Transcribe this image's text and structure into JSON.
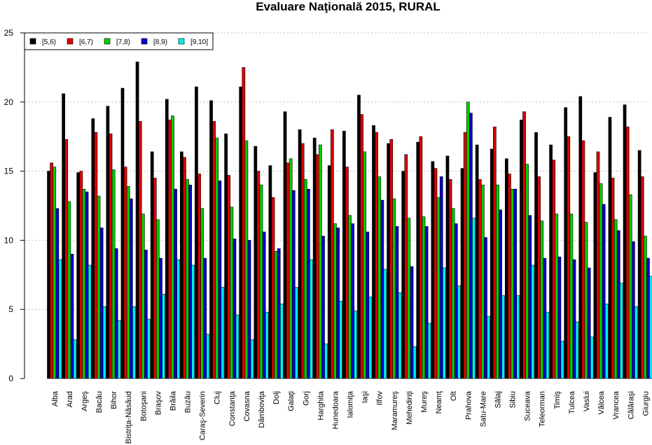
{
  "chart_data": {
    "type": "bar",
    "title": "Evaluare Naţională 2015, RURAL",
    "xlabel": "",
    "ylabel": "",
    "ylim": [
      0,
      25
    ],
    "yticks": [
      0,
      5,
      10,
      15,
      20,
      25
    ],
    "grid": true,
    "legend_position": "top-left",
    "categories": [
      "Alba",
      "Arad",
      "Argeş",
      "Bacău",
      "Bihor",
      "Bistriţa-Năsăud",
      "Botoşani",
      "Braşov",
      "Brăila",
      "Buzău",
      "Caraş-Severin",
      "Cluj",
      "Constanţa",
      "Covasna",
      "Dâmboviţa",
      "Dolj",
      "Galaţi",
      "Gorj",
      "Harghita",
      "Hunedoara",
      "Ialomiţa",
      "Iaşi",
      "Ilfov",
      "Maramureş",
      "Mehedinţi",
      "Mureş",
      "Neamţ",
      "Olt",
      "Prahova",
      "Satu-Mare",
      "Sălaj",
      "Sibiu",
      "Suceava",
      "Teleorman",
      "Timiş",
      "Tulcea",
      "Vaslui",
      "Vâlcea",
      "Vrancea",
      "Călăraşi",
      "Giurgiu"
    ],
    "series": [
      {
        "name": "[5,6)",
        "color": "#000000",
        "values": [
          15.0,
          20.6,
          14.9,
          18.8,
          19.7,
          21.0,
          22.9,
          16.4,
          20.2,
          16.4,
          21.1,
          20.1,
          17.7,
          21.1,
          16.8,
          15.4,
          19.3,
          18.0,
          17.4,
          15.4,
          17.9,
          20.5,
          18.3,
          17.0,
          15.0,
          17.1,
          15.7,
          16.1,
          15.2,
          16.9,
          16.6,
          15.9,
          18.7,
          17.8,
          16.9,
          19.6,
          20.4,
          14.9,
          18.9,
          19.8,
          16.5
        ]
      },
      {
        "name": "[6,7)",
        "color": "#df0000",
        "values": [
          15.6,
          17.3,
          15.0,
          17.8,
          17.7,
          15.3,
          18.6,
          14.5,
          18.7,
          16.0,
          14.8,
          18.6,
          14.7,
          22.5,
          15.0,
          13.1,
          15.6,
          17.0,
          16.2,
          18.0,
          15.3,
          19.1,
          17.8,
          17.3,
          16.2,
          17.5,
          15.2,
          14.4,
          17.8,
          14.4,
          18.2,
          14.8,
          19.3,
          14.6,
          15.8,
          17.5,
          17.2,
          16.4,
          14.5,
          18.2,
          14.6
        ]
      },
      {
        "name": "[7,8)",
        "color": "#00cd00",
        "values": [
          15.3,
          12.8,
          13.7,
          13.2,
          15.1,
          13.9,
          11.9,
          11.5,
          19.0,
          14.4,
          12.3,
          17.4,
          12.4,
          17.2,
          14.0,
          9.2,
          15.9,
          14.4,
          16.9,
          11.2,
          11.8,
          16.4,
          14.6,
          13.0,
          11.6,
          11.7,
          13.1,
          12.3,
          20.0,
          14.0,
          14.0,
          13.7,
          15.5,
          11.4,
          11.9,
          11.9,
          11.3,
          14.1,
          11.5,
          13.3,
          10.3
        ]
      },
      {
        "name": "[8,9)",
        "color": "#0000cd",
        "values": [
          12.3,
          9.0,
          13.5,
          10.9,
          9.4,
          13.0,
          9.3,
          8.7,
          13.7,
          14.0,
          8.7,
          14.3,
          10.1,
          10.0,
          10.6,
          9.4,
          13.6,
          13.7,
          10.3,
          10.9,
          11.2,
          10.6,
          12.9,
          11.0,
          8.1,
          11.0,
          14.6,
          11.2,
          19.2,
          10.2,
          12.2,
          13.7,
          11.8,
          8.7,
          8.8,
          8.6,
          8.0,
          12.6,
          10.7,
          9.9,
          8.7
        ]
      },
      {
        "name": "[9,10]",
        "color": "#00eeee",
        "values": [
          8.6,
          2.8,
          8.2,
          5.2,
          4.2,
          5.2,
          4.3,
          6.1,
          8.6,
          8.2,
          3.2,
          6.6,
          4.6,
          2.8,
          4.8,
          5.4,
          6.6,
          8.6,
          2.5,
          5.6,
          4.9,
          5.9,
          7.9,
          6.2,
          2.3,
          4.0,
          8.0,
          6.7,
          11.6,
          4.5,
          6.0,
          6.0,
          8.2,
          4.8,
          2.7,
          4.1,
          3.0,
          5.4,
          6.9,
          5.2,
          7.4
        ]
      }
    ]
  }
}
